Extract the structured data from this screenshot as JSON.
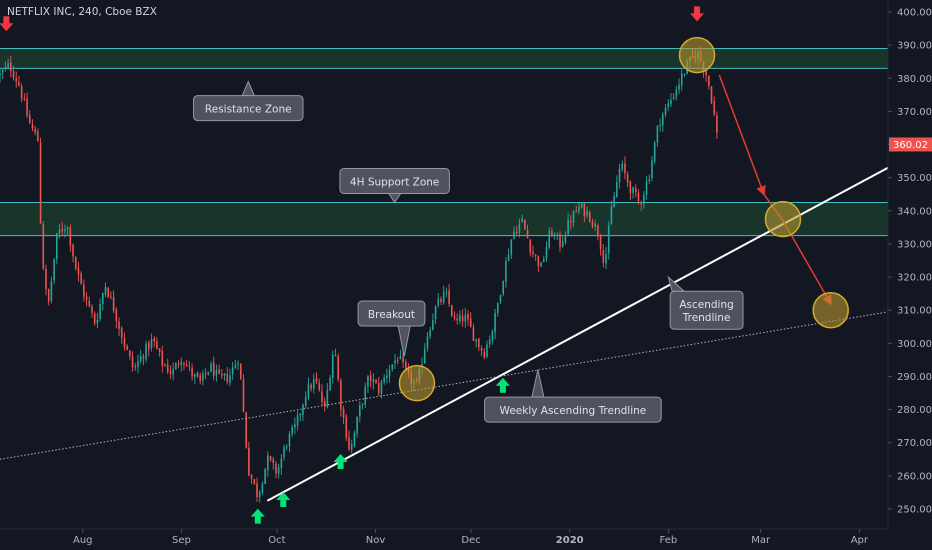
{
  "chart_data": {
    "type": "candlestick",
    "title": "NETFLIX INC, 240, Cboe BZX",
    "ylim": [
      245,
      403
    ],
    "y_ticks": [
      250,
      260,
      270,
      280,
      290,
      300,
      310,
      320,
      330,
      340,
      350,
      360,
      370,
      380,
      390,
      400
    ],
    "y_tick_labels": [
      "250.00",
      "260.00",
      "270.00",
      "280.00",
      "290.00",
      "300.00",
      "310.00",
      "320.00",
      "330.00",
      "340.00",
      "350.00",
      "360.00",
      "370.00",
      "380.00",
      "390.00",
      "400.00"
    ],
    "x_tick_labels": [
      {
        "label": "Aug",
        "day": 26,
        "bold": false
      },
      {
        "label": "Sep",
        "day": 57,
        "bold": false
      },
      {
        "label": "Oct",
        "day": 87,
        "bold": false
      },
      {
        "label": "Nov",
        "day": 118,
        "bold": false
      },
      {
        "label": "Dec",
        "day": 148,
        "bold": false
      },
      {
        "label": "2020",
        "day": 179,
        "bold": true
      },
      {
        "label": "Feb",
        "day": 210,
        "bold": false
      },
      {
        "label": "Mar",
        "day": 239,
        "bold": false
      },
      {
        "label": "Apr",
        "day": 270,
        "bold": false
      }
    ],
    "x_range_days": [
      0,
      279
    ],
    "last_price": {
      "value": 360.02,
      "label": "360.02",
      "color": "#ef5350"
    },
    "price_path": [
      [
        0,
        381
      ],
      [
        3,
        384
      ],
      [
        6,
        378
      ],
      [
        9,
        367
      ],
      [
        12,
        361
      ],
      [
        13,
        329
      ],
      [
        15,
        310
      ],
      [
        18,
        333
      ],
      [
        21,
        336
      ],
      [
        24,
        322
      ],
      [
        27,
        313
      ],
      [
        30,
        306
      ],
      [
        33,
        318
      ],
      [
        36,
        310
      ],
      [
        39,
        300
      ],
      [
        42,
        292
      ],
      [
        45,
        297
      ],
      [
        48,
        301
      ],
      [
        51,
        294
      ],
      [
        54,
        291
      ],
      [
        57,
        296
      ],
      [
        60,
        291
      ],
      [
        63,
        288
      ],
      [
        66,
        293
      ],
      [
        69,
        289
      ],
      [
        72,
        290
      ],
      [
        75,
        296
      ],
      [
        78,
        262
      ],
      [
        81,
        254
      ],
      [
        84,
        265
      ],
      [
        87,
        261
      ],
      [
        90,
        270
      ],
      [
        93,
        275
      ],
      [
        96,
        285
      ],
      [
        99,
        289
      ],
      [
        102,
        280
      ],
      [
        105,
        300
      ],
      [
        107,
        282
      ],
      [
        110,
        267
      ],
      [
        113,
        280
      ],
      [
        116,
        290
      ],
      [
        119,
        286
      ],
      [
        122,
        292
      ],
      [
        125,
        296
      ],
      [
        128,
        290
      ],
      [
        131,
        287
      ],
      [
        134,
        302
      ],
      [
        137,
        311
      ],
      [
        140,
        315
      ],
      [
        143,
        306
      ],
      [
        146,
        308
      ],
      [
        149,
        302
      ],
      [
        152,
        297
      ],
      [
        155,
        305
      ],
      [
        158,
        320
      ],
      [
        161,
        333
      ],
      [
        164,
        337
      ],
      [
        167,
        328
      ],
      [
        170,
        323
      ],
      [
        173,
        334
      ],
      [
        176,
        330
      ],
      [
        179,
        337
      ],
      [
        182,
        341
      ],
      [
        185,
        339
      ],
      [
        188,
        333
      ],
      [
        190,
        324
      ],
      [
        192,
        340
      ],
      [
        195,
        354
      ],
      [
        198,
        347
      ],
      [
        201,
        342
      ],
      [
        204,
        351
      ],
      [
        207,
        367
      ],
      [
        210,
        372
      ],
      [
        213,
        378
      ],
      [
        216,
        384
      ],
      [
        219,
        388
      ],
      [
        222,
        381
      ],
      [
        224,
        372
      ],
      [
        225,
        364
      ],
      [
        226,
        360
      ]
    ],
    "wick_scale": 2.2,
    "candle_step_days": 0.85,
    "colors": {
      "up": "#26a69a",
      "down": "#ef5350"
    },
    "zones": [
      {
        "name": "Resistance Zone",
        "low": 383,
        "high": 389
      },
      {
        "name": "4H Support Zone",
        "low": 332.5,
        "high": 342.5
      }
    ],
    "trendlines": [
      {
        "name": "Ascending Trendline",
        "from": [
          84,
          252.5
        ],
        "to": [
          279,
          353
        ],
        "style": "solid",
        "color": "#ffffff"
      },
      {
        "name": "Weekly Ascending Trendline",
        "from": [
          0,
          265
        ],
        "to": [
          279,
          309.5
        ],
        "style": "dotted",
        "color": "#b2b5be"
      }
    ],
    "projection": [
      [
        226,
        381
      ],
      [
        240,
        345
      ],
      [
        246,
        337
      ],
      [
        261,
        312
      ]
    ],
    "circles": [
      {
        "at": [
          131,
          288
        ],
        "r_days": 5.5
      },
      {
        "at": [
          219,
          387
        ],
        "r_days": 5.5
      },
      {
        "at": [
          246,
          337.5
        ],
        "r_days": 5.5
      },
      {
        "at": [
          261,
          310
        ],
        "r_days": 5.5
      }
    ],
    "arrows_down": [
      [
        2,
        396
      ],
      [
        219,
        399
      ]
    ],
    "arrows_up": [
      [
        81,
        248
      ],
      [
        89,
        253
      ],
      [
        107,
        264.5
      ],
      [
        158,
        287.5
      ]
    ],
    "callouts": [
      {
        "text": "Resistance Zone",
        "anchor": [
          78,
          379
        ],
        "box_center": [
          78,
          371
        ],
        "pointer": "up"
      },
      {
        "text": "4H Support Zone",
        "anchor": [
          124,
          342.5
        ],
        "box_center": [
          124,
          349
        ],
        "pointer": "down"
      },
      {
        "text": "Breakout",
        "anchor": [
          127,
          296
        ],
        "box_center": [
          123,
          309
        ],
        "pointer": "down"
      },
      {
        "text": "Weekly Ascending Trendline",
        "anchor": [
          169,
          292
        ],
        "box_center": [
          180,
          280
        ],
        "pointer": "up"
      },
      {
        "text": "Ascending Trendline",
        "anchor": [
          210,
          320
        ],
        "box_center": [
          222,
          310
        ],
        "pointer": "up"
      }
    ]
  }
}
